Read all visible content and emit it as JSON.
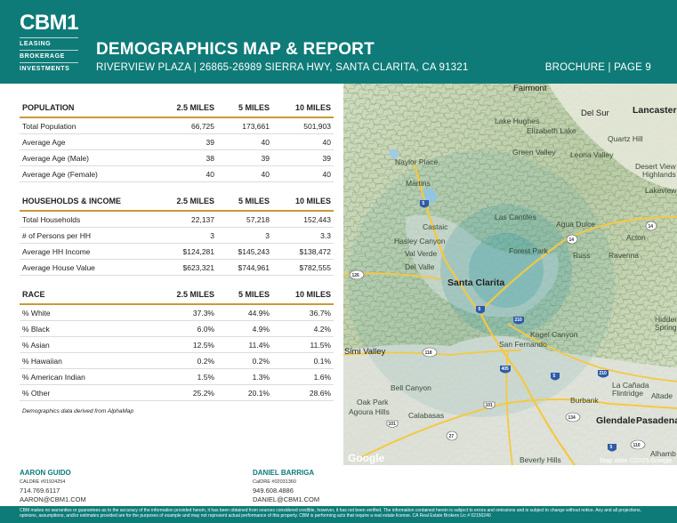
{
  "brand": {
    "logo": "CBM1",
    "lines": [
      "LEASING",
      "BROKERAGE",
      "INVESTMENTS"
    ],
    "accent_color": "#0e7b78",
    "rule_color": "#c99a3a"
  },
  "header": {
    "title": "DEMOGRAPHICS MAP & REPORT",
    "subtitle": "RIVERVIEW PLAZA | 26865-26989 SIERRA HWY, SANTA CLARITA, CA 91321",
    "page_label": "BROCHURE | PAGE 9"
  },
  "population": {
    "header": [
      "POPULATION",
      "2.5 MILES",
      "5 MILES",
      "10 MILES"
    ],
    "rows": [
      [
        "Total Population",
        "66,725",
        "173,661",
        "501,903"
      ],
      [
        "Average Age",
        "39",
        "40",
        "40"
      ],
      [
        "Average Age (Male)",
        "38",
        "39",
        "39"
      ],
      [
        "Average Age (Female)",
        "40",
        "40",
        "40"
      ]
    ]
  },
  "households": {
    "header": [
      "HOUSEHOLDS & INCOME",
      "2.5 MILES",
      "5 MILES",
      "10 MILES"
    ],
    "rows": [
      [
        "Total Households",
        "22,137",
        "57,218",
        "152,443"
      ],
      [
        "# of Persons per HH",
        "3",
        "3",
        "3.3"
      ],
      [
        "Average HH Income",
        "$124,281",
        "$145,243",
        "$138,472"
      ],
      [
        "Average House Value",
        "$623,321",
        "$744,961",
        "$782,555"
      ]
    ]
  },
  "race": {
    "header": [
      "RACE",
      "2.5 MILES",
      "5 MILES",
      "10 MILES"
    ],
    "rows": [
      [
        "% White",
        "37.3%",
        "44.9%",
        "36.7%"
      ],
      [
        "% Black",
        "6.0%",
        "4.9%",
        "4.2%"
      ],
      [
        "% Asian",
        "12.5%",
        "11.4%",
        "11.5%"
      ],
      [
        "% Hawaiian",
        "0.2%",
        "0.2%",
        "0.1%"
      ],
      [
        "% American Indian",
        "1.5%",
        "1.3%",
        "1.6%"
      ],
      [
        "% Other",
        "25.2%",
        "20.1%",
        "28.6%"
      ]
    ]
  },
  "note": "Demographics data derived from AlphaMap",
  "map": {
    "labels": {
      "fairmont": "Fairmont",
      "lancaster": "Lancaster",
      "del_sur": "Del Sur",
      "lake_hughes": "Lake Hughes",
      "elizabeth_lake": "Elizabeth Lake",
      "quartz_hill": "Quartz Hill",
      "green_valley": "Green Valley",
      "leona_valley": "Leona Valley",
      "naylor_place": "Naylor Place",
      "desert_view": "Desert View",
      "highlands": "Highlands",
      "martins": "Martins",
      "lakeview": "Lakeview",
      "las_cantiles": "Las Cantiles",
      "agua_dulce": "Agua Dulce",
      "castaic": "Castaic",
      "hasley_canyon": "Hasley Canyon",
      "val_verde": "Val Verde",
      "forest_park": "Forest Park",
      "acton": "Acton",
      "russ": "Russ",
      "ravenna": "Ravenna",
      "del_valle": "Del Valle",
      "santa_clarita": "Santa Clarita",
      "hidden": "Hidden",
      "springs": "Springs",
      "kagel_canyon": "Kagel Canyon",
      "san_fernando": "San Fernando",
      "simi_valley": "Simi Valley",
      "la_canada": "La Cañada",
      "flintridge": "Flintridge",
      "altadena": "Altade",
      "bell_canyon": "Bell Canyon",
      "oak_park": "Oak Park",
      "agoura_hills": "Agoura Hills",
      "calabasas": "Calabasas",
      "burbank": "Burbank",
      "glendale": "Glendale",
      "pasadena": "Pasadena",
      "alhambra": "Alhamb",
      "beverly_hills": "Beverly Hills"
    },
    "shields": [
      "5",
      "14",
      "14",
      "126",
      "5",
      "210",
      "118",
      "405",
      "5",
      "210",
      "101",
      "134",
      "101",
      "27",
      "5",
      "110"
    ],
    "google": "Google",
    "attribution": "Map data ©2025 Google"
  },
  "contacts": [
    {
      "name": "AARON GUIDO",
      "license": "CALDRE #01924254",
      "phone": "714.769.6117",
      "email": "AARON@CBM1.COM"
    },
    {
      "name": "DANIEL BARRIGA",
      "license": "CalDRE #02031360",
      "phone": "949.608.4886",
      "email": "DANIEL@CBM1.COM"
    }
  ],
  "footer": "CBM makes no warranties or guarantees as to the accuracy of the information provided herein, it has been obtained from sources considered credible, however, it has not been verified. The information contained herein is subject to errors and omissions and is subject to change without notice. Any and all projections, opinions, assumptions, and/or estimates provided are for the purposes of example and may not represent actual performance of this property. CBM is performing acts that require a real estate license. CA Real Estate Brokers Lic # 02150240"
}
